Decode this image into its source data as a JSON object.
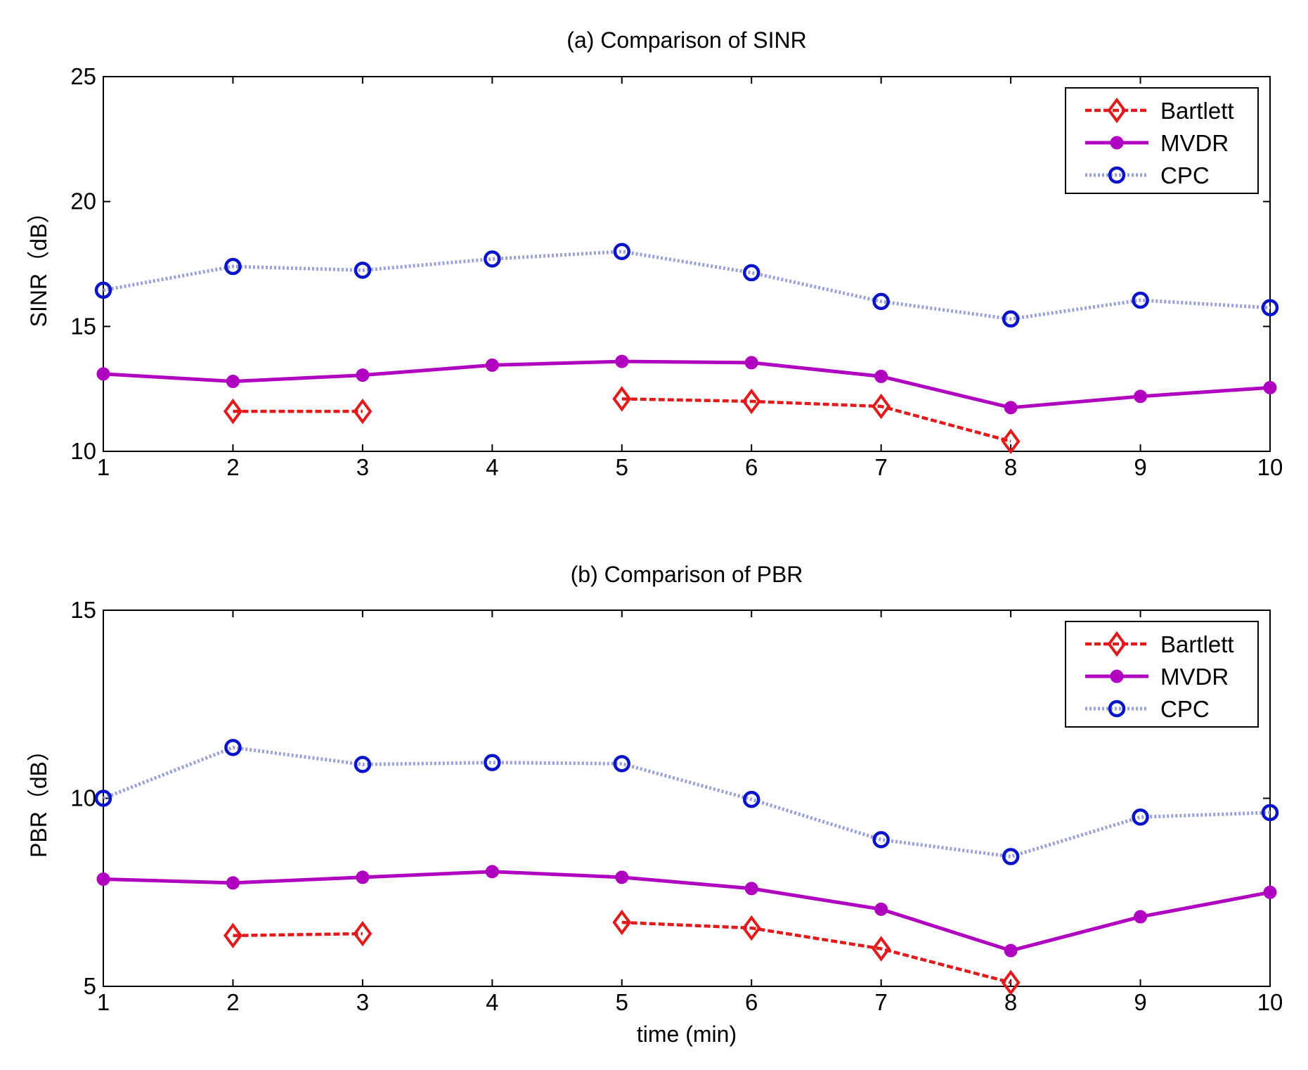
{
  "chart_data": [
    {
      "type": "line",
      "title": "(a) Comparison of SINR",
      "xlabel": "",
      "ylabel": "SINR（dB）",
      "x": [
        1,
        2,
        3,
        4,
        5,
        6,
        7,
        8,
        9,
        10
      ],
      "xlim": [
        1,
        10
      ],
      "ylim": [
        10,
        25
      ],
      "xticks": [
        "1",
        "2",
        "3",
        "4",
        "5",
        "6",
        "7",
        "8",
        "9",
        "10"
      ],
      "yticks": [
        "10",
        "15",
        "20",
        "25"
      ],
      "grid": false,
      "legend_position": "top-right",
      "series": [
        {
          "name": "Bartlett",
          "color": "#e31a1c",
          "style": "dashed",
          "marker": "diamond",
          "values": [
            null,
            11.6,
            11.6,
            null,
            12.1,
            12.0,
            11.8,
            10.4,
            null,
            null
          ]
        },
        {
          "name": "MVDR",
          "color": "#b000c0",
          "style": "solid",
          "marker": "dot",
          "values": [
            13.1,
            12.8,
            13.05,
            13.45,
            13.6,
            13.55,
            13.0,
            11.75,
            12.2,
            12.55
          ]
        },
        {
          "name": "CPC",
          "color": "#0a14c8",
          "style": "dotted",
          "marker": "circle",
          "values": [
            16.45,
            17.4,
            17.25,
            17.7,
            18.0,
            17.15,
            16.0,
            15.3,
            16.05,
            15.75
          ]
        }
      ]
    },
    {
      "type": "line",
      "title": "(b) Comparison of PBR",
      "xlabel": "time (min)",
      "ylabel": "PBR（dB）",
      "x": [
        1,
        2,
        3,
        4,
        5,
        6,
        7,
        8,
        9,
        10
      ],
      "xlim": [
        1,
        10
      ],
      "ylim": [
        5,
        15
      ],
      "xticks": [
        "1",
        "2",
        "3",
        "4",
        "5",
        "6",
        "7",
        "8",
        "9",
        "10"
      ],
      "yticks": [
        "5",
        "10",
        "15"
      ],
      "grid": false,
      "legend_position": "top-right",
      "series": [
        {
          "name": "Bartlett",
          "color": "#e31a1c",
          "style": "dashed",
          "marker": "diamond",
          "values": [
            null,
            6.35,
            6.4,
            null,
            6.7,
            6.55,
            6.0,
            5.1,
            null,
            null
          ]
        },
        {
          "name": "MVDR",
          "color": "#b000c0",
          "style": "solid",
          "marker": "dot",
          "values": [
            7.85,
            7.75,
            7.9,
            8.05,
            7.9,
            7.6,
            7.05,
            5.95,
            6.85,
            7.5
          ]
        },
        {
          "name": "CPC",
          "color": "#0a14c8",
          "style": "dotted",
          "marker": "circle",
          "values": [
            10.0,
            11.35,
            10.9,
            10.95,
            10.92,
            9.97,
            8.9,
            8.45,
            9.5,
            9.62
          ]
        }
      ]
    }
  ]
}
